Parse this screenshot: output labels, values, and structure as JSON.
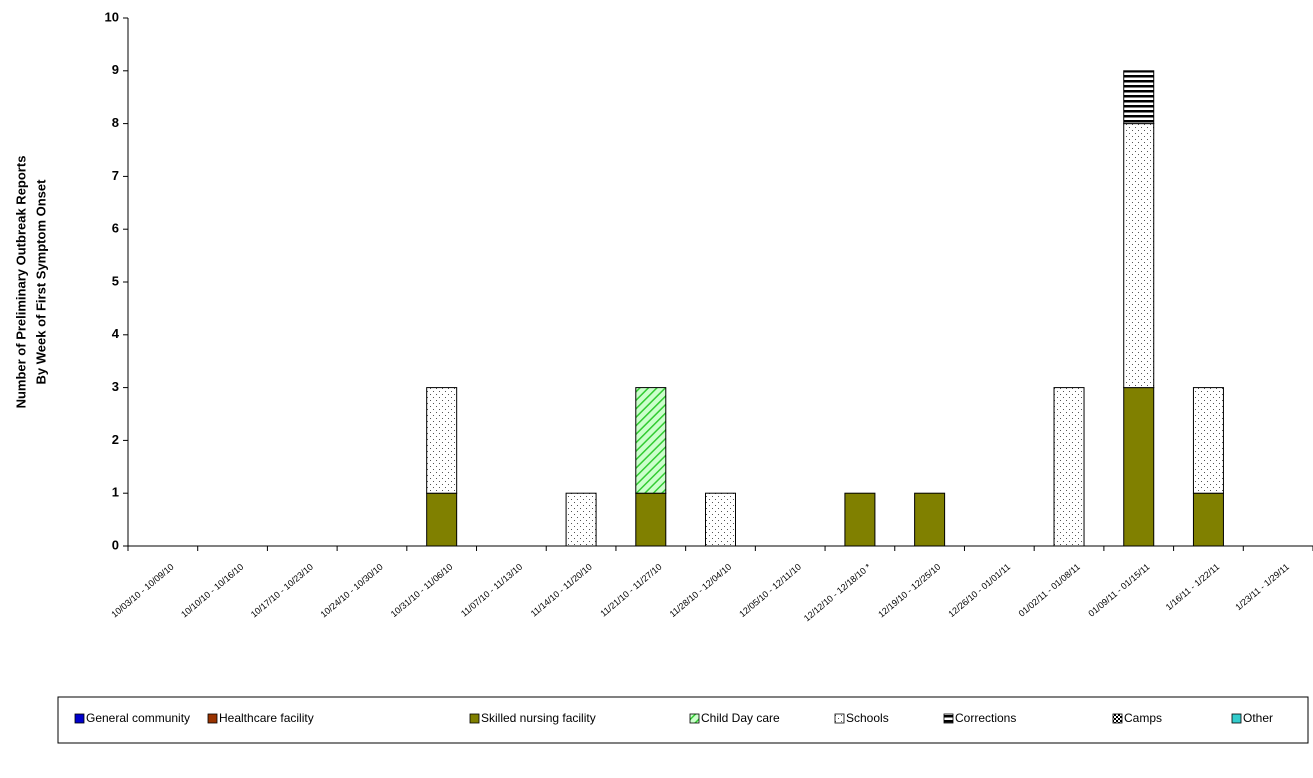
{
  "chart_data": {
    "type": "stacked_bar",
    "ylabel": [
      "Number of Preliminary Outbreak Reports",
      "By Week of First Symptom Onset"
    ],
    "categories": [
      "10/03/10 - 10/09/10",
      "10/10/10 - 10/16/10",
      "10/17/10 - 10/23/10",
      "10/24/10 - 10/30/10",
      "10/31/10 - 11/06/10",
      "11/07/10 - 11/13/10",
      "11/14/10 - 11/20/10",
      "11/21/10 - 11/27/10",
      "11/28/10 - 12/04/10",
      "12/05/10 - 12/11/10",
      "12/12/10 - 12/18/10 *",
      "12/19/10 - 12/25/10",
      "12/26/10 - 01/01/11",
      "01/02/11 - 01/08/11",
      "01/09/11 - 01/15/11",
      "1/16/11 - 1/22/11",
      "1/23/11 - 1/29/11"
    ],
    "series": [
      {
        "name": "General community",
        "color": "#0000cc",
        "pattern": "solid",
        "values": [
          0,
          0,
          0,
          0,
          0,
          0,
          0,
          0,
          0,
          0,
          0,
          0,
          0,
          0,
          0,
          0,
          0
        ]
      },
      {
        "name": "Healthcare facility",
        "color": "#993300",
        "pattern": "solid",
        "values": [
          0,
          0,
          0,
          0,
          0,
          0,
          0,
          0,
          0,
          0,
          0,
          0,
          0,
          0,
          0,
          0,
          0
        ]
      },
      {
        "name": "Skilled nursing facility",
        "color": "#808000",
        "pattern": "solid",
        "values": [
          0,
          0,
          0,
          0,
          1,
          0,
          0,
          1,
          0,
          0,
          1,
          1,
          0,
          0,
          3,
          1,
          0
        ]
      },
      {
        "name": "Child Day care",
        "color": "#33cc33",
        "pattern": "diagonal",
        "values": [
          0,
          0,
          0,
          0,
          0,
          0,
          0,
          2,
          0,
          0,
          0,
          0,
          0,
          0,
          0,
          0,
          0
        ]
      },
      {
        "name": "Schools",
        "color": "#555555",
        "pattern": "dots",
        "values": [
          0,
          0,
          0,
          0,
          2,
          0,
          1,
          0,
          1,
          0,
          0,
          0,
          0,
          3,
          5,
          2,
          0
        ]
      },
      {
        "name": "Corrections",
        "color": "#000000",
        "pattern": "hstripes",
        "values": [
          0,
          0,
          0,
          0,
          0,
          0,
          0,
          0,
          0,
          0,
          0,
          0,
          0,
          0,
          1,
          0,
          0
        ]
      },
      {
        "name": "Camps",
        "color": "#000000",
        "pattern": "checker",
        "values": [
          0,
          0,
          0,
          0,
          0,
          0,
          0,
          0,
          0,
          0,
          0,
          0,
          0,
          0,
          0,
          0,
          0
        ]
      },
      {
        "name": "Other",
        "color": "#33cccc",
        "pattern": "solid",
        "values": [
          0,
          0,
          0,
          0,
          0,
          0,
          0,
          0,
          0,
          0,
          0,
          0,
          0,
          0,
          0,
          0,
          0
        ]
      }
    ],
    "ylim": [
      0,
      10
    ],
    "yticks": [
      0,
      1,
      2,
      3,
      4,
      5,
      6,
      7,
      8,
      9,
      10
    ],
    "grid": false,
    "legend": "bottom"
  }
}
